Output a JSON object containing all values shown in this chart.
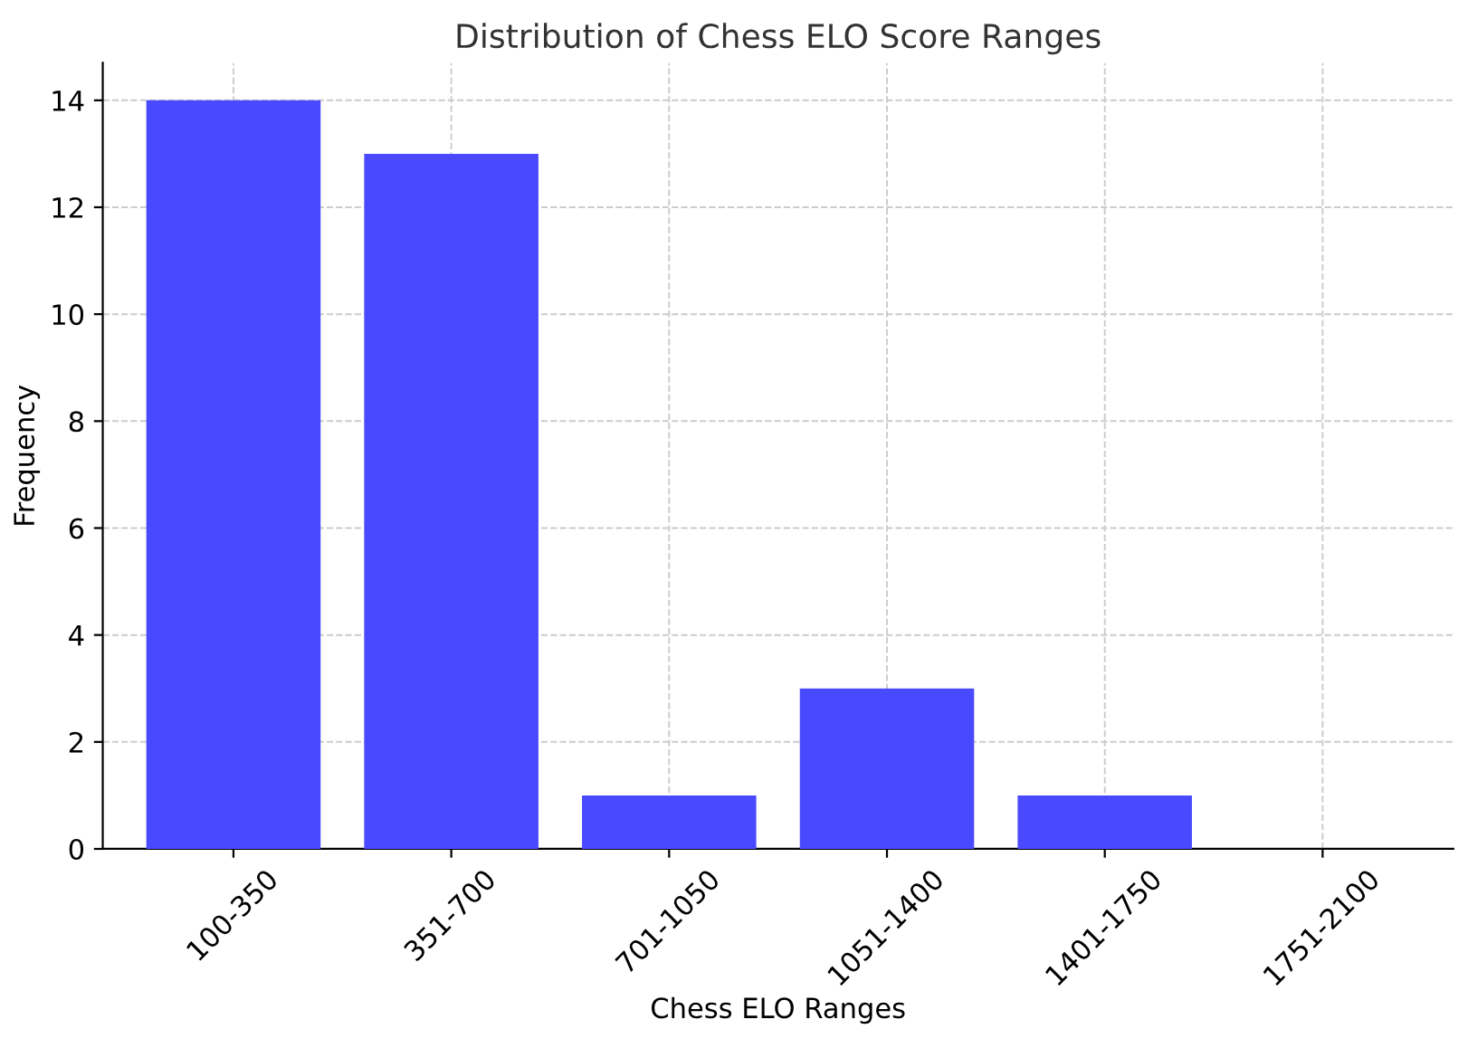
{
  "chart_data": {
    "type": "bar",
    "title": "Distribution of Chess ELO Score Ranges",
    "xlabel": "Chess ELO Ranges",
    "ylabel": "Frequency",
    "categories": [
      "100-350",
      "351-700",
      "701-1050",
      "1051-1400",
      "1401-1750",
      "1751-2100"
    ],
    "values": [
      14,
      13,
      1,
      3,
      1,
      0
    ],
    "color": "#4949ff",
    "ylim": [
      0,
      14.7
    ],
    "yticks": [
      0,
      2,
      4,
      6,
      8,
      10,
      12,
      14
    ],
    "grid": true
  }
}
